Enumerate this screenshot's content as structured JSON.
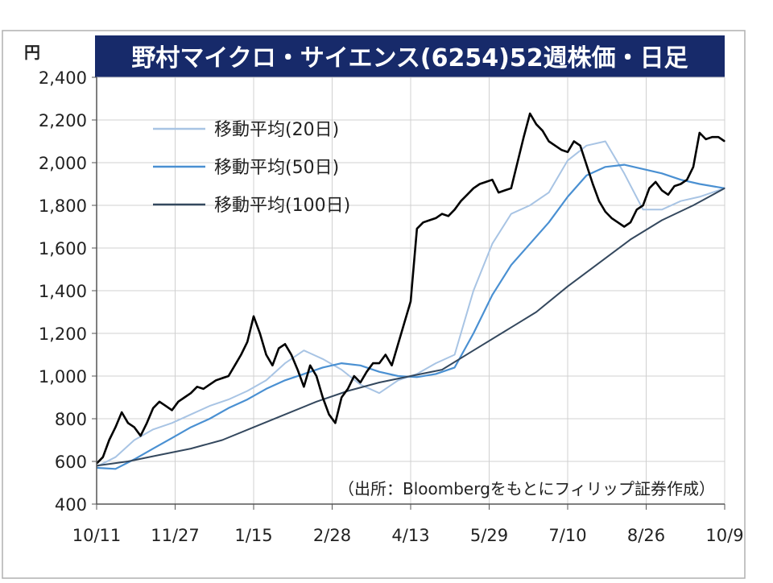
{
  "chart_data": {
    "type": "line",
    "title": "野村マイクロ・サイエンス(6254)52週株価・日足",
    "y_unit": "円",
    "ylim": [
      400,
      2400
    ],
    "y_ticks": [
      2400,
      2200,
      2000,
      1800,
      1600,
      1400,
      1200,
      1000,
      800,
      600,
      400
    ],
    "y_tick_labels": [
      "2,400",
      "2,200",
      "2,000",
      "1,800",
      "1,600",
      "1,400",
      "1,200",
      "1,000",
      "800",
      "600",
      "400"
    ],
    "x_tick_labels": [
      "10/11",
      "11/27",
      "1/15",
      "2/28",
      "4/13",
      "5/29",
      "7/10",
      "8/26",
      "10/9"
    ],
    "x_range": [
      0,
      100
    ],
    "x_ticks": [
      0,
      12.5,
      25,
      37.5,
      50,
      62.5,
      75,
      87.5,
      100
    ],
    "grid": true,
    "legend_position": "upper-left",
    "source_note": "（出所：Bloombergをもとにフィリップ証券作成）",
    "series": [
      {
        "name": "移動平均(20日)",
        "color": "#a8c4e4",
        "x": [
          0,
          3,
          6,
          9,
          12,
          15,
          18,
          21,
          24,
          27,
          30,
          33,
          36,
          39,
          42,
          45,
          48,
          51,
          54,
          57,
          60,
          63,
          66,
          69,
          72,
          75,
          78,
          81,
          84,
          87,
          90,
          93,
          96,
          100
        ],
        "y": [
          575,
          620,
          700,
          750,
          780,
          820,
          860,
          890,
          930,
          980,
          1060,
          1120,
          1080,
          1030,
          960,
          920,
          980,
          1010,
          1060,
          1100,
          1400,
          1620,
          1760,
          1800,
          1860,
          2010,
          2080,
          2100,
          1950,
          1780,
          1780,
          1820,
          1840,
          1880
        ]
      },
      {
        "name": "移動平均(50日)",
        "color": "#4a90d2",
        "x": [
          0,
          3,
          6,
          9,
          12,
          15,
          18,
          21,
          24,
          27,
          30,
          33,
          36,
          39,
          42,
          45,
          48,
          51,
          54,
          57,
          60,
          63,
          66,
          69,
          72,
          75,
          78,
          81,
          84,
          87,
          90,
          93,
          96,
          100
        ],
        "y": [
          570,
          565,
          610,
          660,
          710,
          760,
          800,
          850,
          890,
          940,
          980,
          1010,
          1040,
          1060,
          1050,
          1020,
          1000,
          995,
          1010,
          1040,
          1200,
          1380,
          1520,
          1620,
          1720,
          1840,
          1940,
          1980,
          1990,
          1970,
          1950,
          1920,
          1900,
          1880
        ]
      },
      {
        "name": "移動平均(100日)",
        "color": "#34485e",
        "x": [
          0,
          5,
          10,
          15,
          20,
          25,
          30,
          35,
          40,
          45,
          50,
          55,
          60,
          65,
          70,
          75,
          80,
          85,
          90,
          95,
          100
        ],
        "y": [
          580,
          600,
          630,
          660,
          700,
          760,
          820,
          880,
          930,
          970,
          1000,
          1030,
          1120,
          1210,
          1300,
          1420,
          1530,
          1640,
          1730,
          1800,
          1880
        ]
      },
      {
        "name": "",
        "color": "#000000",
        "x": [
          0,
          1,
          2,
          3,
          4,
          5,
          6,
          7,
          8,
          9,
          10,
          11,
          12,
          13,
          14,
          15,
          16,
          17,
          18,
          19,
          20,
          21,
          22,
          23,
          24,
          25,
          26,
          27,
          28,
          29,
          30,
          31,
          32,
          33,
          34,
          35,
          36,
          37,
          38,
          39,
          40,
          41,
          42,
          43,
          44,
          45,
          46,
          47,
          48,
          49,
          50,
          51,
          52,
          53,
          54,
          55,
          56,
          57,
          58,
          59,
          60,
          61,
          62,
          63,
          64,
          65,
          66,
          67,
          68,
          69,
          70,
          71,
          72,
          73,
          74,
          75,
          76,
          77,
          78,
          79,
          80,
          81,
          82,
          83,
          84,
          85,
          86,
          87,
          88,
          89,
          90,
          91,
          92,
          93,
          94,
          95,
          96,
          97,
          98,
          99,
          100
        ],
        "y": [
          590,
          620,
          700,
          760,
          830,
          780,
          760,
          720,
          780,
          850,
          880,
          860,
          840,
          880,
          900,
          920,
          950,
          940,
          960,
          980,
          990,
          1000,
          1050,
          1100,
          1160,
          1280,
          1200,
          1100,
          1050,
          1130,
          1150,
          1100,
          1030,
          950,
          1050,
          1000,
          900,
          820,
          780,
          900,
          940,
          1000,
          970,
          1020,
          1060,
          1060,
          1100,
          1050,
          1150,
          1250,
          1350,
          1690,
          1720,
          1730,
          1740,
          1760,
          1750,
          1780,
          1820,
          1850,
          1880,
          1900,
          1910,
          1920,
          1860,
          1870,
          1880,
          2000,
          2120,
          2230,
          2180,
          2150,
          2100,
          2080,
          2060,
          2050,
          2100,
          2080,
          1990,
          1900,
          1820,
          1770,
          1740,
          1720,
          1700,
          1720,
          1780,
          1800,
          1880,
          1910,
          1870,
          1850,
          1890,
          1900,
          1920,
          1980,
          2140,
          2110,
          2120,
          2120,
          2100
        ]
      }
    ]
  }
}
